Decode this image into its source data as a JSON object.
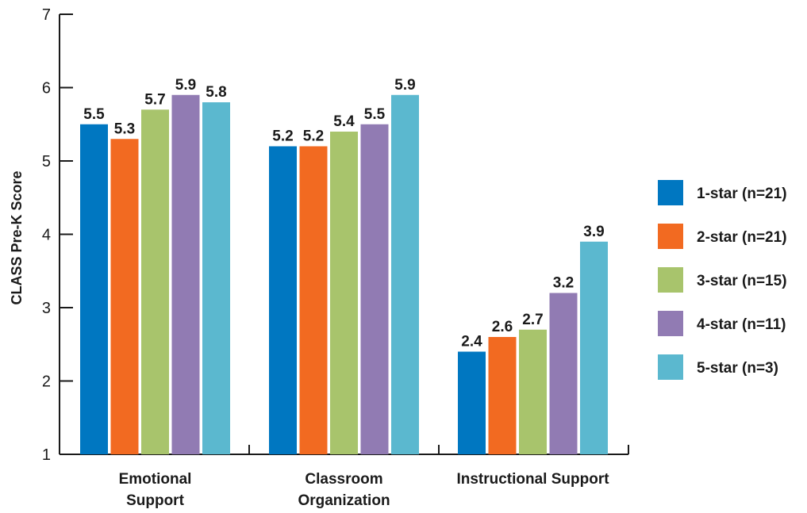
{
  "chart_data": {
    "type": "bar",
    "title": "",
    "xlabel": "",
    "ylabel": "CLASS Pre-K Score",
    "ylim": [
      1,
      7
    ],
    "yticks": [
      1,
      2,
      3,
      4,
      5,
      6,
      7
    ],
    "grid": false,
    "legend_position": "right",
    "categories": [
      [
        "Emotional",
        "Support"
      ],
      [
        "Classroom",
        "Organization"
      ],
      [
        "Instructional Support"
      ]
    ],
    "series": [
      {
        "name": "1-star (n=21)",
        "color": "#0077c1",
        "values": [
          5.5,
          5.2,
          2.4
        ]
      },
      {
        "name": "2-star (n=21)",
        "color": "#f26a21",
        "values": [
          5.3,
          5.2,
          2.6
        ]
      },
      {
        "name": "3-star (n=15)",
        "color": "#a8c46c",
        "values": [
          5.7,
          5.4,
          2.7
        ]
      },
      {
        "name": "4-star (n=11)",
        "color": "#917bb3",
        "values": [
          5.9,
          5.5,
          3.2
        ]
      },
      {
        "name": "5-star (n=3)",
        "color": "#5bb8cf",
        "values": [
          5.8,
          5.9,
          3.9
        ]
      }
    ]
  }
}
